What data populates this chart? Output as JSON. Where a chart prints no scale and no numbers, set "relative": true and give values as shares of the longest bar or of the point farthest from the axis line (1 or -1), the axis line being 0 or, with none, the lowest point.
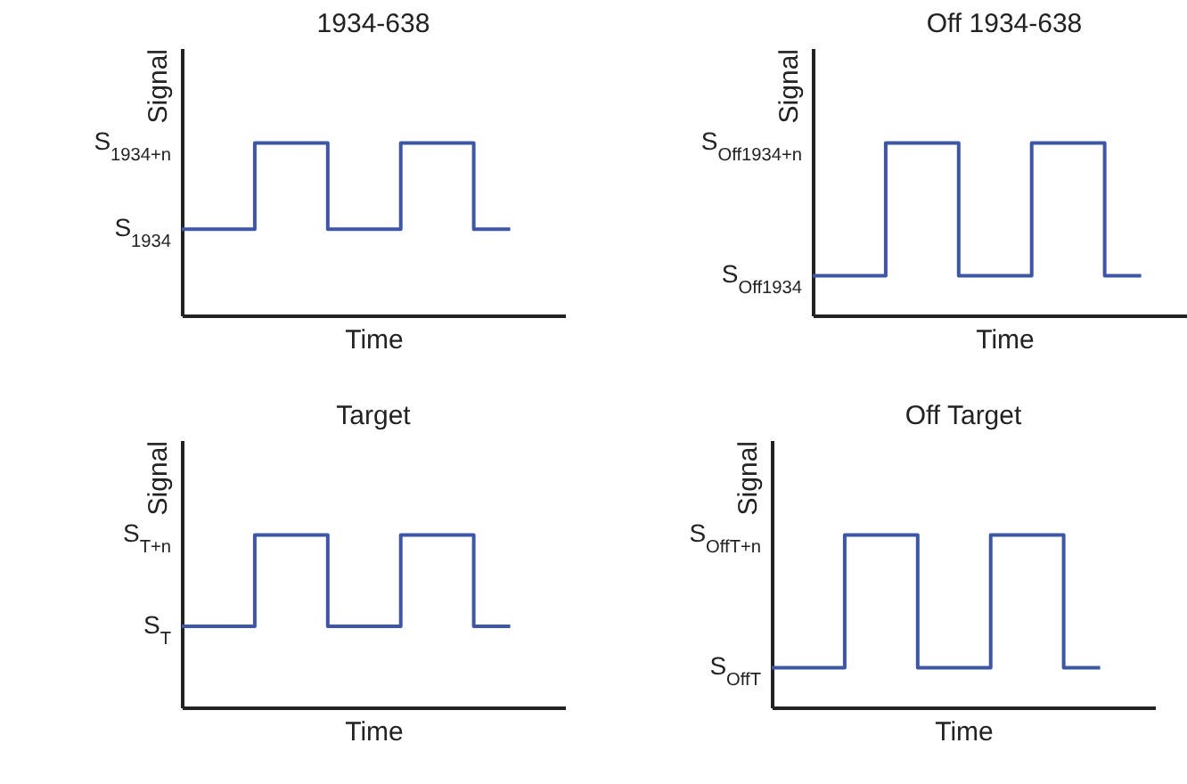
{
  "chart_data": [
    {
      "type": "step",
      "title": "1934-638",
      "xlabel": "Time",
      "ylabel": "Signal",
      "relative": true,
      "categories": [
        null,
        null,
        null,
        null,
        null,
        null,
        null,
        null,
        null,
        null
      ],
      "values": [
        0.5,
        0.5,
        1,
        1,
        0.5,
        0.5,
        1,
        1,
        0.5,
        0.5
      ],
      "color": "#3d56a6",
      "annotations": [
        "S$_{1934}$",
        "S$_{1934+n}$"
      ]
    },
    {
      "type": "step",
      "title": "Off 1934-638",
      "xlabel": "Time",
      "ylabel": "Signal",
      "relative": true,
      "categories": [
        null,
        null,
        null,
        null,
        null,
        null,
        null,
        null,
        null,
        null
      ],
      "values": [
        0.23,
        0.23,
        1,
        1,
        0.23,
        0.23,
        1,
        1,
        0.23,
        0.23
      ],
      "color": "#3d56a6",
      "annotations": [
        "S$_{Off1934}$",
        "S$_{Off1934+n}$"
      ]
    },
    {
      "type": "step",
      "title": "Target",
      "xlabel": "Time",
      "ylabel": "Signal",
      "relative": true,
      "categories": [
        null,
        null,
        null,
        null,
        null,
        null,
        null,
        null,
        null,
        null
      ],
      "values": [
        0.47,
        0.47,
        1,
        1,
        0.47,
        0.47,
        1,
        1,
        0.47,
        0.47
      ],
      "color": "#3d56a6",
      "annotations": [
        "S$_{T}$",
        "S$_{T+n}$"
      ]
    },
    {
      "type": "step",
      "title": "Off Target",
      "xlabel": "Time",
      "ylabel": "Signal",
      "relative": true,
      "categories": [
        null,
        null,
        null,
        null,
        null,
        null,
        null,
        null,
        null,
        null
      ],
      "values": [
        0.23,
        0.23,
        1,
        1,
        0.23,
        0.23,
        1,
        1,
        0.23,
        0.23
      ],
      "color": "#3d56a6",
      "annotations": [
        "S$_{OffT}$",
        "S$_{OffT+n}$"
      ]
    }
  ]
}
